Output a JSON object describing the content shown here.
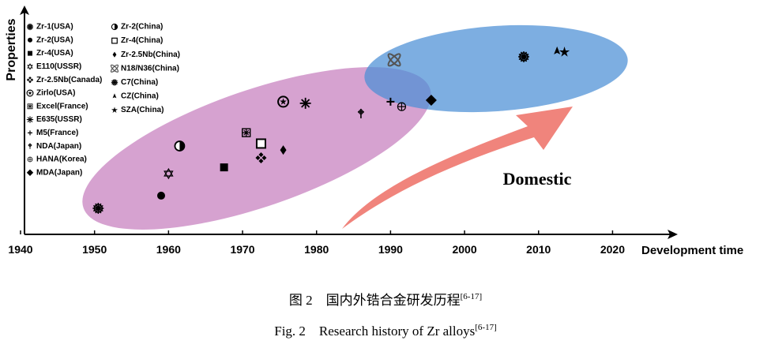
{
  "chart_data": {
    "type": "scatter",
    "x_label": "Development time",
    "y_label": "Properties",
    "xlim": [
      1940,
      2027
    ],
    "ylim": [
      0,
      100
    ],
    "xticks": [
      1940,
      1950,
      1960,
      1970,
      1980,
      1990,
      2000,
      2010,
      2020
    ],
    "annotation": "Domestic",
    "series": [
      {
        "name": "Zr-1(USA)",
        "marker": "gear",
        "x": [
          1950.5
        ],
        "y": [
          11.7
        ]
      },
      {
        "name": "Zr-2(USA)",
        "marker": "dot",
        "x": [
          1959
        ],
        "y": [
          17.4
        ]
      },
      {
        "name": "Zr-4(USA)",
        "marker": "square",
        "x": [
          1967.5
        ],
        "y": [
          30.1
        ]
      },
      {
        "name": "E110(USSR)",
        "marker": "hexagram",
        "x": [
          1960
        ],
        "y": [
          27.3
        ]
      },
      {
        "name": "Zr-2.5Nb(Canada)",
        "marker": "quad",
        "x": [
          1972.5
        ],
        "y": [
          34.4
        ]
      },
      {
        "name": "Zirlo(USA)",
        "marker": "ringstar",
        "x": [
          1975.5
        ],
        "y": [
          59.6
        ]
      },
      {
        "name": "Excel(France)",
        "marker": "boxcross",
        "x": [
          1970.5
        ],
        "y": [
          45.7
        ]
      },
      {
        "name": "E635(USSR)",
        "marker": "asterisk",
        "x": [
          1978.5
        ],
        "y": [
          58.9
        ]
      },
      {
        "name": "M5(France)",
        "marker": "plus",
        "x": [
          1990
        ],
        "y": [
          59.6
        ]
      },
      {
        "name": "NDA(Japan)",
        "marker": "dagger",
        "x": [
          1986
        ],
        "y": [
          54.3
        ]
      },
      {
        "name": "HANA(Korea)",
        "marker": "circleplus",
        "x": [
          1991.5
        ],
        "y": [
          57.4
        ]
      },
      {
        "name": "MDA(Japan)",
        "marker": "diamond",
        "x": [
          1995.5
        ],
        "y": [
          60.3
        ]
      },
      {
        "name": "Zr-2(China)",
        "marker": "halfcircle",
        "x": [
          1961.5
        ],
        "y": [
          39.7
        ]
      },
      {
        "name": "Zr-4(China)",
        "marker": "hollowsquare",
        "x": [
          1972.5
        ],
        "y": [
          40.8
        ]
      },
      {
        "name": "Zr-2.5Nb(China)",
        "marker": "smalldiamond",
        "x": [
          1975.5
        ],
        "y": [
          37.9
        ]
      },
      {
        "name": "N18/N36(China)",
        "marker": "loops",
        "x": [
          1990.5
        ],
        "y": [
          78.4
        ]
      },
      {
        "name": "C7(China)",
        "marker": "gear",
        "x": [
          2008
        ],
        "y": [
          79.8
        ]
      },
      {
        "name": "CZ(China)",
        "marker": "tri",
        "x": [
          2012.5
        ],
        "y": [
          82.3
        ]
      },
      {
        "name": "SZA(China)",
        "marker": "star",
        "x": [
          2013.5
        ],
        "y": [
          81.9
        ]
      }
    ]
  },
  "caption": {
    "cn": "图 2　国内外锆合金研发历程",
    "cn_ref": "[6-17]",
    "en": "Fig. 2　Research history of Zr alloys",
    "en_ref": "[6-17]"
  }
}
